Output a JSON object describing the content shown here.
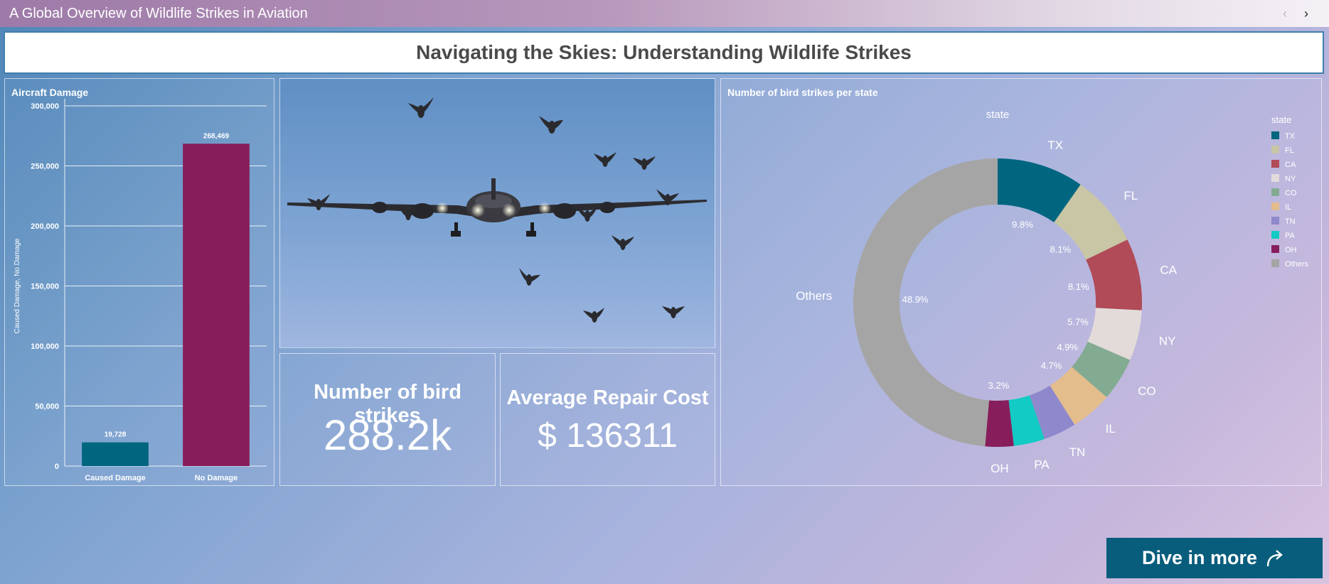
{
  "app": {
    "title": "A Global Overview of Wildlife Strikes in Aviation",
    "nav_prev": "‹",
    "nav_next": "›"
  },
  "banner": {
    "title": "Navigating the Skies: Understanding Wildlife Strikes"
  },
  "kpis": {
    "strikes_label": "Number of bird strikes",
    "strikes_value": "288.2k",
    "cost_label": "Average Repair Cost",
    "cost_value": "$ 136311"
  },
  "button": {
    "label": "Dive in more"
  },
  "icons": {
    "nav_prev": "chevron-left-icon",
    "nav_next": "chevron-right-icon",
    "dive": "share-arrow-icon"
  },
  "chart_data": [
    {
      "type": "bar",
      "title": "Aircraft Damage",
      "ylabel": "Caused Damage, No Damage",
      "categories": [
        "Caused Damage",
        "No Damage"
      ],
      "values": [
        19728,
        268469
      ],
      "value_labels": [
        "19,728",
        "268,469"
      ],
      "colors": [
        "#006680",
        "#871e5b"
      ],
      "ylim": [
        0,
        300000
      ],
      "yticks": [
        0,
        50000,
        100000,
        150000,
        200000,
        250000,
        300000
      ],
      "ytick_labels": [
        "0",
        "50,000",
        "100,000",
        "150,000",
        "200,000",
        "250,000",
        "300,000"
      ],
      "grid": true
    },
    {
      "type": "pie",
      "title": "Number of bird strikes per state",
      "subtitle": "state",
      "legend_title": "state",
      "legend_position": "right",
      "hole": 0.68,
      "slices": [
        {
          "label": "TX",
          "value": 9.8,
          "pct_label": "9.8%",
          "color": "#006680"
        },
        {
          "label": "FL",
          "value": 8.1,
          "pct_label": "8.1%",
          "color": "#c8c6a5"
        },
        {
          "label": "CA",
          "value": 8.1,
          "pct_label": "8.1%",
          "color": "#b04b57"
        },
        {
          "label": "NY",
          "value": 5.7,
          "pct_label": "5.7%",
          "color": "#e3dbd9"
        },
        {
          "label": "CO",
          "value": 4.9,
          "pct_label": "4.9%",
          "color": "#83ab92"
        },
        {
          "label": "IL",
          "value": 4.7,
          "pct_label": "4.7%",
          "color": "#e4bd8d"
        },
        {
          "label": "TN",
          "value": 3.7,
          "pct_label": "",
          "color": "#8e88cc"
        },
        {
          "label": "PA",
          "value": 3.5,
          "pct_label": "",
          "color": "#12cbc4"
        },
        {
          "label": "OH",
          "value": 3.2,
          "pct_label": "3.2%",
          "color": "#871e5b"
        },
        {
          "label": "Others",
          "value": 48.9,
          "pct_label": "48.9%",
          "color": "#a5a5a5"
        }
      ]
    }
  ]
}
